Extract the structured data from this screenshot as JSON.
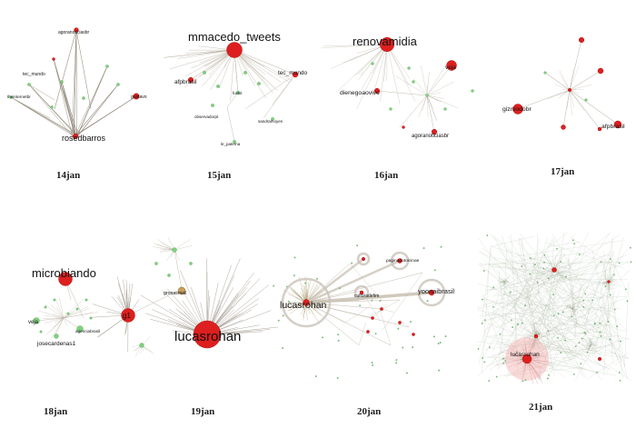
{
  "panels": [
    {
      "id": "p14",
      "date": "14jan",
      "labels": [
        {
          "text": "agoranoticiasbr",
          "size": "small"
        },
        {
          "text": "tec_mundo",
          "size": "small"
        },
        {
          "text": "theinternetbr",
          "size": "small"
        },
        {
          "text": "gustavo",
          "size": "small"
        },
        {
          "text": "rosedbarros",
          "size": "medium"
        }
      ]
    },
    {
      "id": "p15",
      "date": "15jan",
      "labels": [
        {
          "text": "mmacedo_tweets",
          "size": "large"
        },
        {
          "text": "afpbrasil",
          "size": "small"
        },
        {
          "text": "tec_mundo",
          "size": "small"
        },
        {
          "text": "fuckit",
          "size": "small"
        },
        {
          "text": "observadorpt",
          "size": "small"
        },
        {
          "text": "sandramoyes",
          "size": "small"
        },
        {
          "text": "le_paterna",
          "size": "small"
        }
      ]
    },
    {
      "id": "p16",
      "date": "16jan",
      "labels": [
        {
          "text": "renovamidia",
          "size": "large"
        },
        {
          "text": "veja",
          "size": "small"
        },
        {
          "text": "dienegoaovivo",
          "size": "small"
        },
        {
          "text": "agoranoticiasbr",
          "size": "small"
        }
      ]
    },
    {
      "id": "p17",
      "date": "17jan",
      "labels": [
        {
          "text": "gizmodobr",
          "size": "small"
        },
        {
          "text": "afpbrasil",
          "size": "small"
        }
      ]
    },
    {
      "id": "p18",
      "date": "18jan",
      "labels": [
        {
          "text": "microbiando",
          "size": "large"
        },
        {
          "text": "veja",
          "size": "small"
        },
        {
          "text": "josecardenas1",
          "size": "small"
        },
        {
          "text": "agenciabrasil",
          "size": "small"
        }
      ]
    },
    {
      "id": "p19",
      "date": "19jan",
      "labels": [
        {
          "text": "lucasrohan",
          "size": "large"
        },
        {
          "text": "g1",
          "size": "small"
        },
        {
          "text": "gronasmail",
          "size": "small"
        }
      ]
    },
    {
      "id": "p20",
      "date": "20jan",
      "labels": [
        {
          "text": "lucasrohan",
          "size": "large"
        },
        {
          "text": "paginadotoicinae",
          "size": "small"
        },
        {
          "text": "yoonaibrasil",
          "size": "small"
        },
        {
          "text": "culturadefim",
          "size": "small"
        }
      ]
    },
    {
      "id": "p21",
      "date": "21jan",
      "labels": [
        {
          "text": "lucasrohan",
          "size": "small"
        }
      ]
    }
  ],
  "colors": {
    "hub": "#dd1f1f",
    "hub_stroke": "#b01515",
    "leaf": "#7fd07f",
    "edge": "#b8b0a0",
    "edge_dark": "#8a8070"
  }
}
